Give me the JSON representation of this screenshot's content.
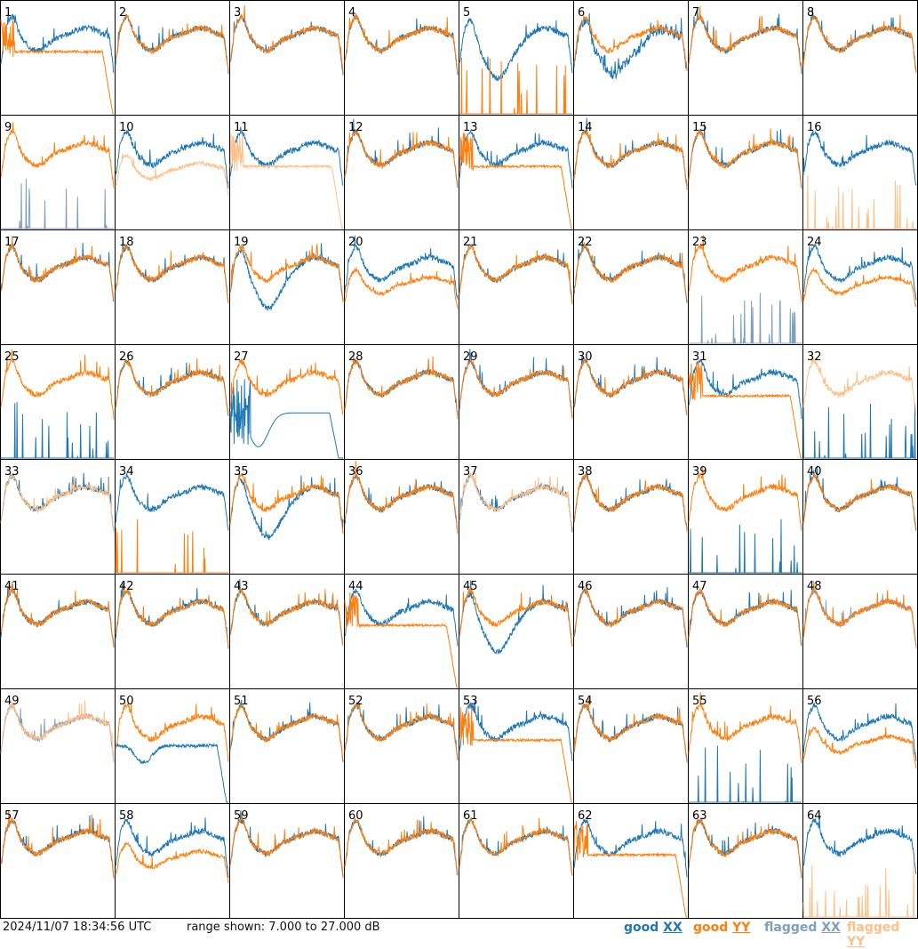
{
  "chart_data": {
    "type": "line",
    "layout": "8x8 small multiples",
    "panels": [
      "1",
      "2",
      "3",
      "4",
      "5",
      "6",
      "7",
      "8",
      "9",
      "10",
      "11",
      "12",
      "13",
      "14",
      "15",
      "16",
      "17",
      "18",
      "19",
      "20",
      "21",
      "22",
      "23",
      "24",
      "25",
      "26",
      "27",
      "28",
      "29",
      "30",
      "31",
      "32",
      "33",
      "34",
      "35",
      "36",
      "37",
      "38",
      "39",
      "40",
      "41",
      "42",
      "43",
      "44",
      "45",
      "46",
      "47",
      "48",
      "49",
      "50",
      "51",
      "52",
      "53",
      "54",
      "55",
      "56",
      "57",
      "58",
      "59",
      "60",
      "61",
      "62",
      "63",
      "64"
    ],
    "ylim": [
      7.0,
      27.0
    ],
    "y_unit": "dB",
    "series": [
      {
        "name": "good XX",
        "color": "#1f77b4"
      },
      {
        "name": "good YY",
        "color": "#ff7f0e"
      },
      {
        "name": "flagged XX",
        "color": "#7f9fbf"
      },
      {
        "name": "flagged YY",
        "color": "#ffbf87"
      }
    ],
    "panel_styles": {
      "1": {
        "XX": "normal",
        "YY": "low-drop"
      },
      "5": {
        "XX": "dip",
        "YY": "spikes"
      },
      "6": {
        "XX": "noisy-dip",
        "YY": "normal"
      },
      "9": {
        "XXf": "spikes",
        "YY": "normal"
      },
      "10": {
        "XX": "normal",
        "YYf": "low"
      },
      "11": {
        "XX": "normal",
        "YYf": "low-drop"
      },
      "13": {
        "XX": "normal",
        "YY": "low-drop"
      },
      "16": {
        "XX": "normal",
        "YYf": "spikes"
      },
      "19": {
        "XX": "dip",
        "YY": "normal"
      },
      "20": {
        "XX": "normal",
        "YY": "low"
      },
      "23": {
        "XXf": "spikes",
        "YY": "normal"
      },
      "24": {
        "XX": "normal",
        "YY": "low"
      },
      "25": {
        "XX": "spikes",
        "YY": "normal"
      },
      "27": {
        "XX": "big-dip-drop",
        "YY": "normal"
      },
      "31": {
        "XX": "normal",
        "YY": "low-drop"
      },
      "32": {
        "YYf": "normal",
        "XX": "spikes"
      },
      "33": {
        "XX": "normal",
        "YYf": "normal"
      },
      "34": {
        "XX": "normal",
        "YY": "spikes"
      },
      "35": {
        "XX": "dip",
        "YY": "normal"
      },
      "37": {
        "XX": "normal",
        "YYf": "normal"
      },
      "39": {
        "XX": "spikes",
        "YY": "normal"
      },
      "44": {
        "XX": "normal",
        "YY": "low-drop"
      },
      "45": {
        "XX": "dip",
        "YY": "normal"
      },
      "48": {
        "XXf": "normal",
        "YY": "normal"
      },
      "49": {
        "XXf": "normal",
        "YYf": "normal"
      },
      "50": {
        "XX": "dip-drop",
        "YY": "normal"
      },
      "53": {
        "XX": "normal",
        "YY": "low-drop"
      },
      "55": {
        "XX": "spikes",
        "YY": "normal"
      },
      "56": {
        "XX": "normal",
        "YY": "low"
      },
      "58": {
        "XX": "normal",
        "YY": "low"
      },
      "62": {
        "XX": "normal",
        "YY": "low-drop"
      },
      "64": {
        "XX": "normal",
        "YYf": "spikes"
      }
    }
  },
  "footer": {
    "timestamp": "2024/11/07 18:34:56 UTC",
    "range_text": "range shown: 7.000 to 27.000 dB",
    "legend": [
      {
        "prefix": "good ",
        "suffix": "XX",
        "color": "#1f77b4"
      },
      {
        "prefix": "good ",
        "suffix": "YY",
        "color": "#ff7f0e"
      },
      {
        "prefix": "flagged ",
        "suffix": "XX",
        "color": "#7f9fbf"
      },
      {
        "prefix": "flagged ",
        "suffix": "YY",
        "color": "#ffbf87"
      }
    ]
  }
}
